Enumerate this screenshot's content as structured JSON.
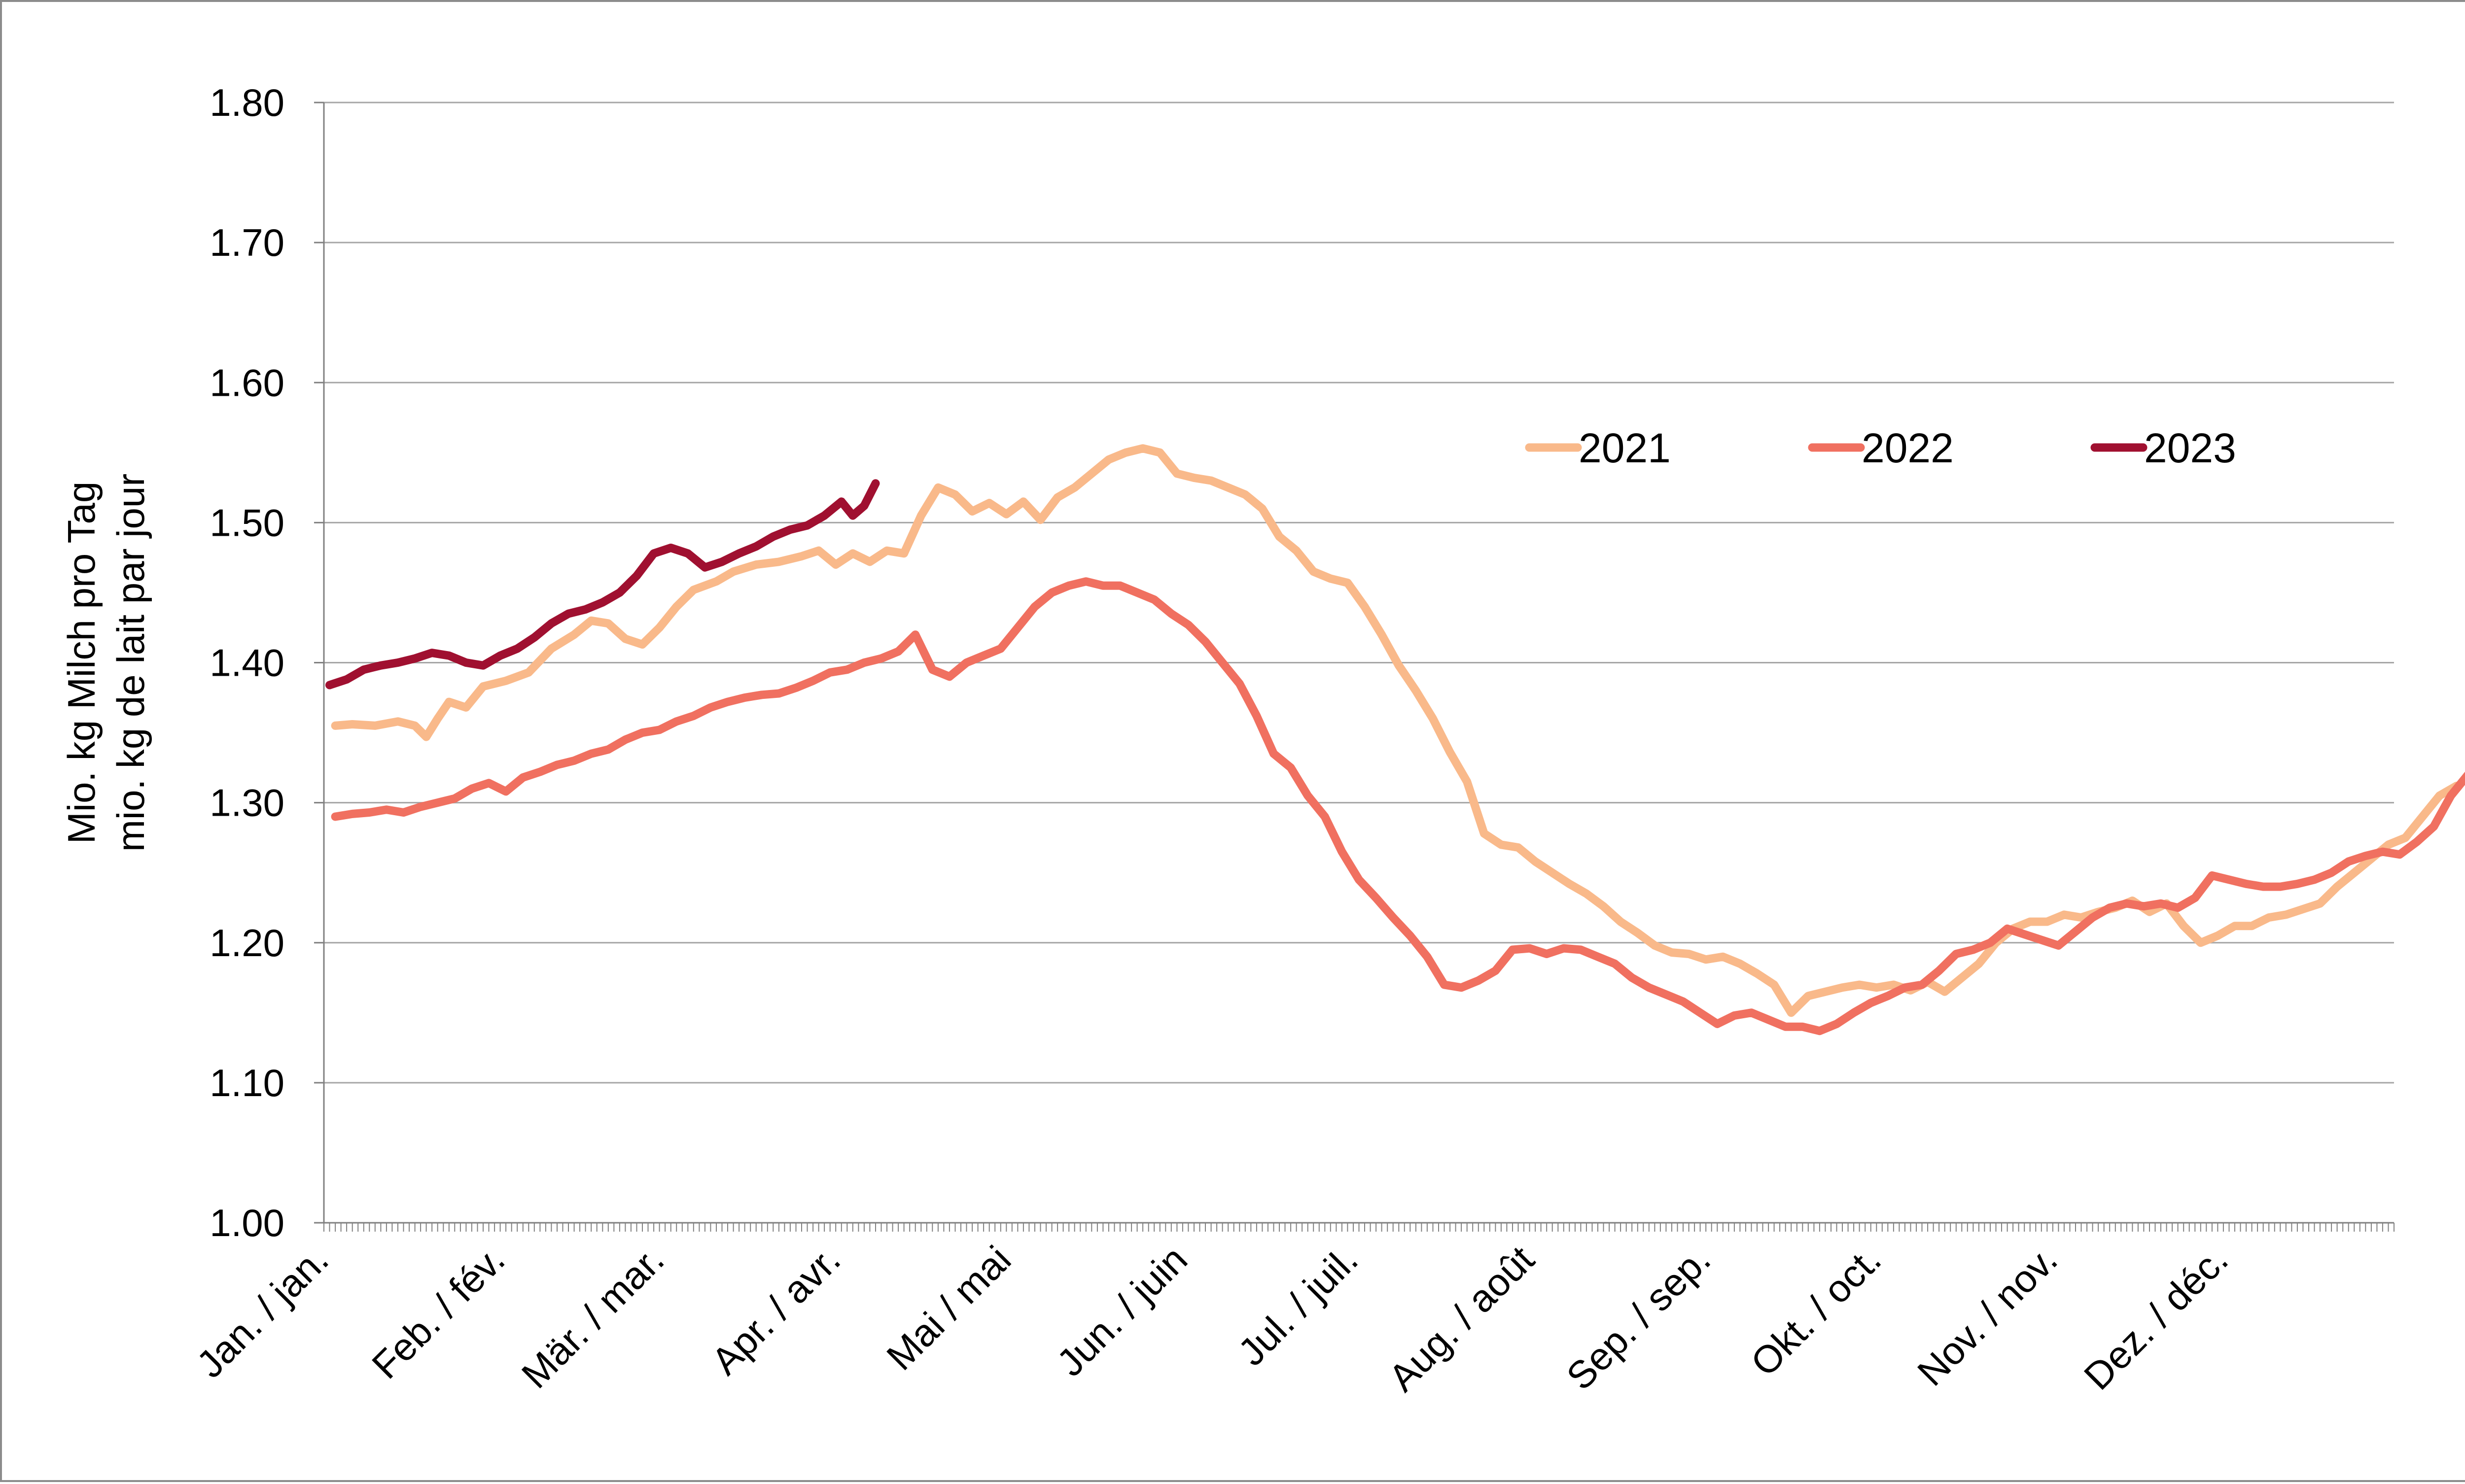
{
  "chart_data": {
    "type": "line",
    "ylabel_lines": [
      "Mio. kg Milch pro Tag",
      "mio. kg de lait par jour"
    ],
    "ylim": [
      1.0,
      1.8
    ],
    "yticks": [
      1.0,
      1.1,
      1.2,
      1.3,
      1.4,
      1.5,
      1.6,
      1.7,
      1.8
    ],
    "ytick_labels": [
      "1.00",
      "1.10",
      "1.20",
      "1.30",
      "1.40",
      "1.50",
      "1.60",
      "1.70",
      "1.80"
    ],
    "x_unit": "day of year",
    "xlim": [
      1,
      365
    ],
    "categories": [
      "Jan. / jan.",
      "Feb. / fév.",
      "Mär. / mar.",
      "Apr. / avr.",
      "Mai / mai",
      "Jun. / juin",
      "Jul. / juil.",
      "Aug. / août",
      "Sep. / sep.",
      "Okt. / oct.",
      "Nov. / nov.",
      "Dez. / déc."
    ],
    "grid": "horizontal",
    "legend_position": "top-right",
    "series": [
      {
        "name": "2021",
        "color": "#f9b98a",
        "points": [
          [
            3,
            1.355
          ],
          [
            6,
            1.356
          ],
          [
            10,
            1.355
          ],
          [
            14,
            1.358
          ],
          [
            17,
            1.355
          ],
          [
            19,
            1.347
          ],
          [
            21,
            1.36
          ],
          [
            23,
            1.372
          ],
          [
            26,
            1.368
          ],
          [
            29,
            1.383
          ],
          [
            33,
            1.387
          ],
          [
            37,
            1.393
          ],
          [
            41,
            1.41
          ],
          [
            45,
            1.42
          ],
          [
            48,
            1.43
          ],
          [
            51,
            1.428
          ],
          [
            54,
            1.417
          ],
          [
            57,
            1.413
          ],
          [
            60,
            1.425
          ],
          [
            63,
            1.44
          ],
          [
            66,
            1.452
          ],
          [
            70,
            1.458
          ],
          [
            73,
            1.465
          ],
          [
            77,
            1.47
          ],
          [
            81,
            1.472
          ],
          [
            85,
            1.476
          ],
          [
            88,
            1.48
          ],
          [
            91,
            1.47
          ],
          [
            94,
            1.478
          ],
          [
            97,
            1.472
          ],
          [
            100,
            1.48
          ],
          [
            103,
            1.478
          ],
          [
            106,
            1.505
          ],
          [
            109,
            1.525
          ],
          [
            112,
            1.52
          ],
          [
            115,
            1.508
          ],
          [
            118,
            1.514
          ],
          [
            121,
            1.506
          ],
          [
            124,
            1.515
          ],
          [
            127,
            1.502
          ],
          [
            130,
            1.518
          ],
          [
            133,
            1.525
          ],
          [
            136,
            1.535
          ],
          [
            139,
            1.545
          ],
          [
            142,
            1.55
          ],
          [
            145,
            1.553
          ],
          [
            148,
            1.55
          ],
          [
            151,
            1.535
          ],
          [
            154,
            1.532
          ],
          [
            157,
            1.53
          ],
          [
            160,
            1.525
          ],
          [
            163,
            1.52
          ],
          [
            166,
            1.51
          ],
          [
            169,
            1.49
          ],
          [
            172,
            1.48
          ],
          [
            175,
            1.465
          ],
          [
            178,
            1.46
          ],
          [
            181,
            1.457
          ],
          [
            184,
            1.44
          ],
          [
            187,
            1.42
          ],
          [
            190,
            1.398
          ],
          [
            193,
            1.38
          ],
          [
            196,
            1.36
          ],
          [
            199,
            1.336
          ],
          [
            202,
            1.315
          ],
          [
            205,
            1.278
          ],
          [
            208,
            1.27
          ],
          [
            211,
            1.268
          ],
          [
            214,
            1.258
          ],
          [
            217,
            1.25
          ],
          [
            220,
            1.242
          ],
          [
            223,
            1.235
          ],
          [
            226,
            1.226
          ],
          [
            229,
            1.215
          ],
          [
            232,
            1.207
          ],
          [
            235,
            1.198
          ],
          [
            238,
            1.193
          ],
          [
            241,
            1.192
          ],
          [
            244,
            1.188
          ],
          [
            247,
            1.19
          ],
          [
            250,
            1.185
          ],
          [
            253,
            1.178
          ],
          [
            256,
            1.17
          ],
          [
            259,
            1.15
          ],
          [
            262,
            1.162
          ],
          [
            265,
            1.165
          ],
          [
            268,
            1.168
          ],
          [
            271,
            1.17
          ],
          [
            274,
            1.168
          ],
          [
            277,
            1.17
          ],
          [
            280,
            1.166
          ],
          [
            283,
            1.172
          ],
          [
            286,
            1.165
          ],
          [
            289,
            1.175
          ],
          [
            292,
            1.185
          ],
          [
            295,
            1.2
          ],
          [
            298,
            1.21
          ],
          [
            301,
            1.215
          ],
          [
            304,
            1.215
          ],
          [
            307,
            1.22
          ],
          [
            310,
            1.218
          ],
          [
            313,
            1.222
          ],
          [
            316,
            1.225
          ],
          [
            319,
            1.23
          ],
          [
            322,
            1.222
          ],
          [
            325,
            1.228
          ],
          [
            328,
            1.212
          ],
          [
            331,
            1.2
          ],
          [
            334,
            1.205
          ],
          [
            337,
            1.212
          ],
          [
            340,
            1.212
          ],
          [
            343,
            1.218
          ],
          [
            346,
            1.22
          ],
          [
            349,
            1.224
          ],
          [
            352,
            1.228
          ],
          [
            355,
            1.24
          ],
          [
            358,
            1.25
          ],
          [
            361,
            1.26
          ],
          [
            364,
            1.27
          ],
          [
            367,
            1.275
          ],
          [
            370,
            1.29
          ],
          [
            373,
            1.305
          ],
          [
            376,
            1.312
          ]
        ]
      },
      {
        "name": "2022",
        "color": "#f07060",
        "points": [
          [
            3,
            1.29
          ],
          [
            6,
            1.292
          ],
          [
            9,
            1.293
          ],
          [
            12,
            1.295
          ],
          [
            15,
            1.293
          ],
          [
            18,
            1.297
          ],
          [
            21,
            1.3
          ],
          [
            24,
            1.303
          ],
          [
            27,
            1.31
          ],
          [
            30,
            1.314
          ],
          [
            33,
            1.308
          ],
          [
            36,
            1.318
          ],
          [
            39,
            1.322
          ],
          [
            42,
            1.327
          ],
          [
            45,
            1.33
          ],
          [
            48,
            1.335
          ],
          [
            51,
            1.338
          ],
          [
            54,
            1.345
          ],
          [
            57,
            1.35
          ],
          [
            60,
            1.352
          ],
          [
            63,
            1.358
          ],
          [
            66,
            1.362
          ],
          [
            69,
            1.368
          ],
          [
            72,
            1.372
          ],
          [
            75,
            1.375
          ],
          [
            78,
            1.377
          ],
          [
            81,
            1.378
          ],
          [
            84,
            1.382
          ],
          [
            87,
            1.387
          ],
          [
            90,
            1.393
          ],
          [
            93,
            1.395
          ],
          [
            96,
            1.4
          ],
          [
            99,
            1.403
          ],
          [
            102,
            1.408
          ],
          [
            105,
            1.42
          ],
          [
            108,
            1.395
          ],
          [
            111,
            1.39
          ],
          [
            114,
            1.4
          ],
          [
            117,
            1.405
          ],
          [
            120,
            1.41
          ],
          [
            123,
            1.425
          ],
          [
            126,
            1.44
          ],
          [
            129,
            1.45
          ],
          [
            132,
            1.455
          ],
          [
            135,
            1.458
          ],
          [
            138,
            1.455
          ],
          [
            141,
            1.455
          ],
          [
            144,
            1.45
          ],
          [
            147,
            1.445
          ],
          [
            150,
            1.435
          ],
          [
            153,
            1.427
          ],
          [
            156,
            1.415
          ],
          [
            159,
            1.4
          ],
          [
            162,
            1.385
          ],
          [
            165,
            1.362
          ],
          [
            168,
            1.335
          ],
          [
            171,
            1.325
          ],
          [
            174,
            1.305
          ],
          [
            177,
            1.29
          ],
          [
            180,
            1.265
          ],
          [
            183,
            1.245
          ],
          [
            186,
            1.232
          ],
          [
            189,
            1.218
          ],
          [
            192,
            1.205
          ],
          [
            195,
            1.19
          ],
          [
            198,
            1.17
          ],
          [
            201,
            1.168
          ],
          [
            204,
            1.173
          ],
          [
            207,
            1.18
          ],
          [
            210,
            1.195
          ],
          [
            213,
            1.196
          ],
          [
            216,
            1.192
          ],
          [
            219,
            1.196
          ],
          [
            222,
            1.195
          ],
          [
            225,
            1.19
          ],
          [
            228,
            1.185
          ],
          [
            231,
            1.175
          ],
          [
            234,
            1.168
          ],
          [
            237,
            1.163
          ],
          [
            240,
            1.158
          ],
          [
            243,
            1.15
          ],
          [
            246,
            1.142
          ],
          [
            249,
            1.148
          ],
          [
            252,
            1.15
          ],
          [
            255,
            1.145
          ],
          [
            258,
            1.14
          ],
          [
            261,
            1.14
          ],
          [
            264,
            1.137
          ],
          [
            267,
            1.142
          ],
          [
            270,
            1.15
          ],
          [
            273,
            1.157
          ],
          [
            276,
            1.162
          ],
          [
            279,
            1.168
          ],
          [
            282,
            1.17
          ],
          [
            285,
            1.18
          ],
          [
            288,
            1.192
          ],
          [
            291,
            1.195
          ],
          [
            294,
            1.2
          ],
          [
            297,
            1.21
          ],
          [
            300,
            1.206
          ],
          [
            303,
            1.202
          ],
          [
            306,
            1.198
          ],
          [
            309,
            1.208
          ],
          [
            312,
            1.218
          ],
          [
            315,
            1.225
          ],
          [
            318,
            1.228
          ],
          [
            321,
            1.226
          ],
          [
            324,
            1.228
          ],
          [
            327,
            1.225
          ],
          [
            330,
            1.232
          ],
          [
            333,
            1.248
          ],
          [
            336,
            1.245
          ],
          [
            339,
            1.242
          ],
          [
            342,
            1.24
          ],
          [
            345,
            1.24
          ],
          [
            348,
            1.242
          ],
          [
            351,
            1.245
          ],
          [
            354,
            1.25
          ],
          [
            357,
            1.258
          ],
          [
            360,
            1.262
          ],
          [
            363,
            1.265
          ],
          [
            366,
            1.263
          ],
          [
            369,
            1.272
          ],
          [
            372,
            1.283
          ],
          [
            375,
            1.305
          ],
          [
            378,
            1.32
          ],
          [
            380,
            1.325
          ]
        ]
      },
      {
        "name": "2023",
        "color": "#a01030",
        "points": [
          [
            2,
            1.384
          ],
          [
            5,
            1.388
          ],
          [
            8,
            1.395
          ],
          [
            11,
            1.398
          ],
          [
            14,
            1.4
          ],
          [
            17,
            1.403
          ],
          [
            20,
            1.407
          ],
          [
            23,
            1.405
          ],
          [
            26,
            1.4
          ],
          [
            29,
            1.398
          ],
          [
            32,
            1.405
          ],
          [
            35,
            1.41
          ],
          [
            38,
            1.418
          ],
          [
            41,
            1.428
          ],
          [
            44,
            1.435
          ],
          [
            47,
            1.438
          ],
          [
            50,
            1.443
          ],
          [
            53,
            1.45
          ],
          [
            56,
            1.462
          ],
          [
            59,
            1.478
          ],
          [
            62,
            1.482
          ],
          [
            65,
            1.478
          ],
          [
            68,
            1.468
          ],
          [
            71,
            1.472
          ],
          [
            74,
            1.478
          ],
          [
            77,
            1.483
          ],
          [
            80,
            1.49
          ],
          [
            83,
            1.495
          ],
          [
            86,
            1.498
          ],
          [
            89,
            1.505
          ],
          [
            92,
            1.515
          ],
          [
            94,
            1.505
          ],
          [
            96,
            1.512
          ],
          [
            98,
            1.528
          ]
        ]
      }
    ]
  }
}
